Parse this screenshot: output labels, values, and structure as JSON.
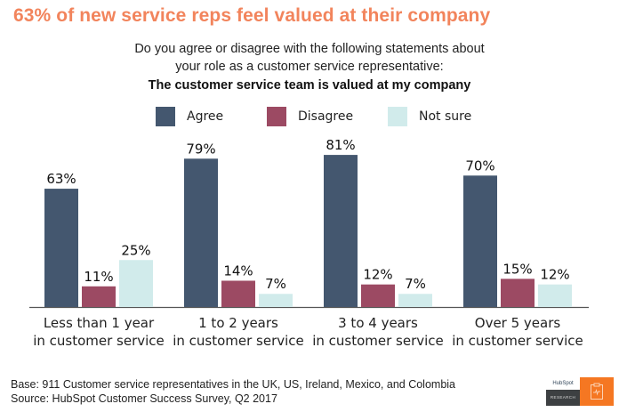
{
  "headline": "63% of new service reps feel valued at their company",
  "question": {
    "line1": "Do you agree or disagree with the following statements about",
    "line2": "your role as a customer service representative:",
    "statement": "The customer service team is valued at my company"
  },
  "footer": {
    "base": "Base: 911 Customer service representatives in the UK, US, Ireland, Mexico, and Colombia",
    "source": "Source: HubSpot Customer Success Survey, Q2 2017"
  },
  "logo": {
    "brand": "HubSpot",
    "label": "RESEARCH",
    "icon": "clipboard-pulse-icon",
    "colors": {
      "orange": "#f57722",
      "dark": "#3d4042"
    }
  },
  "chart_data": {
    "type": "bar",
    "title": "The customer service team is valued at my company",
    "xlabel": "",
    "ylabel": "",
    "ylim": [
      0,
      100
    ],
    "grid": false,
    "legend_position": "top-center",
    "categories": [
      [
        "Less than 1 year",
        "in customer service"
      ],
      [
        "1 to 2 years",
        "in customer service"
      ],
      [
        "3 to 4 years",
        "in customer service"
      ],
      [
        "Over 5 years",
        "in customer service"
      ]
    ],
    "series": [
      {
        "name": "Agree",
        "color": "#44576f",
        "values": [
          63,
          79,
          81,
          70
        ]
      },
      {
        "name": "Disagree",
        "color": "#9c4a63",
        "values": [
          11,
          14,
          12,
          15
        ]
      },
      {
        "name": "Not sure",
        "color": "#d1ebeb",
        "values": [
          25,
          7,
          7,
          12
        ]
      }
    ],
    "value_suffix": "%"
  }
}
